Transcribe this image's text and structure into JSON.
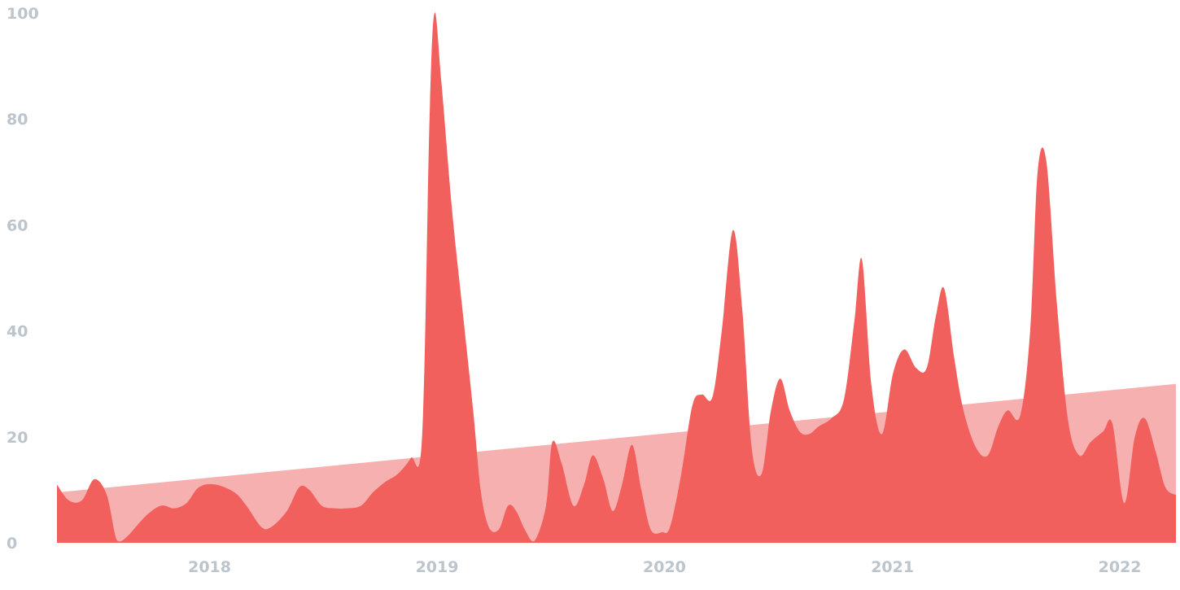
{
  "chart_data": {
    "type": "area",
    "title": "",
    "xlabel": "",
    "ylabel": "",
    "ylim": [
      0,
      100
    ],
    "xlim": [
      "2017-05-01",
      "2022-04-01"
    ],
    "grid": false,
    "legend": "none",
    "yticks": [
      "0",
      "20",
      "40",
      "60",
      "80",
      "100"
    ],
    "xticks": [
      {
        "label": "2018",
        "date": "2018-01-01"
      },
      {
        "label": "2019",
        "date": "2019-01-01"
      },
      {
        "label": "2020",
        "date": "2020-01-01"
      },
      {
        "label": "2021",
        "date": "2021-01-01"
      },
      {
        "label": "2022",
        "date": "2022-01-01"
      }
    ],
    "series": [
      {
        "role": "trend",
        "color": "#f7b0b0",
        "points": [
          [
            "2017-05-01",
            9.5
          ],
          [
            "2022-04-01",
            30
          ]
        ]
      },
      {
        "role": "values",
        "color": "#f2605e",
        "points": [
          [
            "2017-05-01",
            11
          ],
          [
            "2017-05-20",
            8
          ],
          [
            "2017-06-10",
            8
          ],
          [
            "2017-06-30",
            12
          ],
          [
            "2017-07-20",
            9
          ],
          [
            "2017-08-05",
            0.5
          ],
          [
            "2017-08-20",
            1
          ],
          [
            "2017-09-20",
            5
          ],
          [
            "2017-10-15",
            7
          ],
          [
            "2017-11-05",
            6.5
          ],
          [
            "2017-11-25",
            7.5
          ],
          [
            "2017-12-15",
            10.5
          ],
          [
            "2018-01-10",
            11
          ],
          [
            "2018-02-10",
            9.5
          ],
          [
            "2018-03-01",
            7
          ],
          [
            "2018-03-25",
            3
          ],
          [
            "2018-04-10",
            3
          ],
          [
            "2018-05-05",
            6
          ],
          [
            "2018-05-25",
            10.5
          ],
          [
            "2018-06-10",
            10
          ],
          [
            "2018-06-30",
            7
          ],
          [
            "2018-07-20",
            6.5
          ],
          [
            "2018-08-10",
            6.5
          ],
          [
            "2018-09-01",
            7
          ],
          [
            "2018-09-20",
            9.5
          ],
          [
            "2018-10-10",
            11.5
          ],
          [
            "2018-10-30",
            13
          ],
          [
            "2018-11-20",
            16
          ],
          [
            "2018-12-08",
            20
          ],
          [
            "2018-12-20",
            80
          ],
          [
            "2018-12-28",
            100
          ],
          [
            "2019-01-08",
            87
          ],
          [
            "2019-01-25",
            63
          ],
          [
            "2019-02-10",
            45
          ],
          [
            "2019-02-28",
            25
          ],
          [
            "2019-03-12",
            10
          ],
          [
            "2019-03-25",
            3
          ],
          [
            "2019-04-10",
            2.5
          ],
          [
            "2019-04-25",
            7
          ],
          [
            "2019-05-08",
            6
          ],
          [
            "2019-05-22",
            2.5
          ],
          [
            "2019-06-06",
            0.3
          ],
          [
            "2019-06-25",
            7
          ],
          [
            "2019-07-05",
            19
          ],
          [
            "2019-07-20",
            15
          ],
          [
            "2019-08-08",
            7
          ],
          [
            "2019-08-25",
            11
          ],
          [
            "2019-09-08",
            16.5
          ],
          [
            "2019-09-25",
            12
          ],
          [
            "2019-10-10",
            6
          ],
          [
            "2019-10-25",
            11
          ],
          [
            "2019-11-10",
            18.5
          ],
          [
            "2019-11-25",
            10
          ],
          [
            "2019-12-10",
            2.5
          ],
          [
            "2019-12-28",
            2
          ],
          [
            "2020-01-10",
            3
          ],
          [
            "2020-01-28",
            13
          ],
          [
            "2020-02-15",
            26
          ],
          [
            "2020-03-01",
            28
          ],
          [
            "2020-03-18",
            27.5
          ],
          [
            "2020-04-02",
            40
          ],
          [
            "2020-04-20",
            59
          ],
          [
            "2020-05-05",
            44
          ],
          [
            "2020-05-20",
            18
          ],
          [
            "2020-06-05",
            13
          ],
          [
            "2020-06-20",
            25
          ],
          [
            "2020-07-05",
            31
          ],
          [
            "2020-07-20",
            25
          ],
          [
            "2020-08-05",
            21
          ],
          [
            "2020-08-20",
            20.5
          ],
          [
            "2020-09-05",
            22
          ],
          [
            "2020-09-25",
            23.5
          ],
          [
            "2020-10-15",
            27
          ],
          [
            "2020-11-01",
            42
          ],
          [
            "2020-11-13",
            53.5
          ],
          [
            "2020-11-28",
            30
          ],
          [
            "2020-12-15",
            20.5
          ],
          [
            "2021-01-02",
            32
          ],
          [
            "2021-01-20",
            36.5
          ],
          [
            "2021-02-08",
            33
          ],
          [
            "2021-02-25",
            33
          ],
          [
            "2021-03-12",
            43
          ],
          [
            "2021-03-25",
            48
          ],
          [
            "2021-04-10",
            35
          ],
          [
            "2021-04-25",
            25
          ],
          [
            "2021-05-15",
            18
          ],
          [
            "2021-06-03",
            16.5
          ],
          [
            "2021-06-20",
            22
          ],
          [
            "2021-07-05",
            25
          ],
          [
            "2021-07-25",
            24
          ],
          [
            "2021-08-10",
            40
          ],
          [
            "2021-08-22",
            70
          ],
          [
            "2021-09-05",
            72
          ],
          [
            "2021-09-22",
            45
          ],
          [
            "2021-10-10",
            23
          ],
          [
            "2021-10-28",
            16.5
          ],
          [
            "2021-11-15",
            19
          ],
          [
            "2021-12-05",
            21
          ],
          [
            "2021-12-20",
            22.5
          ],
          [
            "2022-01-08",
            7.5
          ],
          [
            "2022-01-25",
            20
          ],
          [
            "2022-02-10",
            23.5
          ],
          [
            "2022-02-28",
            17
          ],
          [
            "2022-03-15",
            10.5
          ],
          [
            "2022-04-01",
            9
          ]
        ]
      }
    ]
  }
}
